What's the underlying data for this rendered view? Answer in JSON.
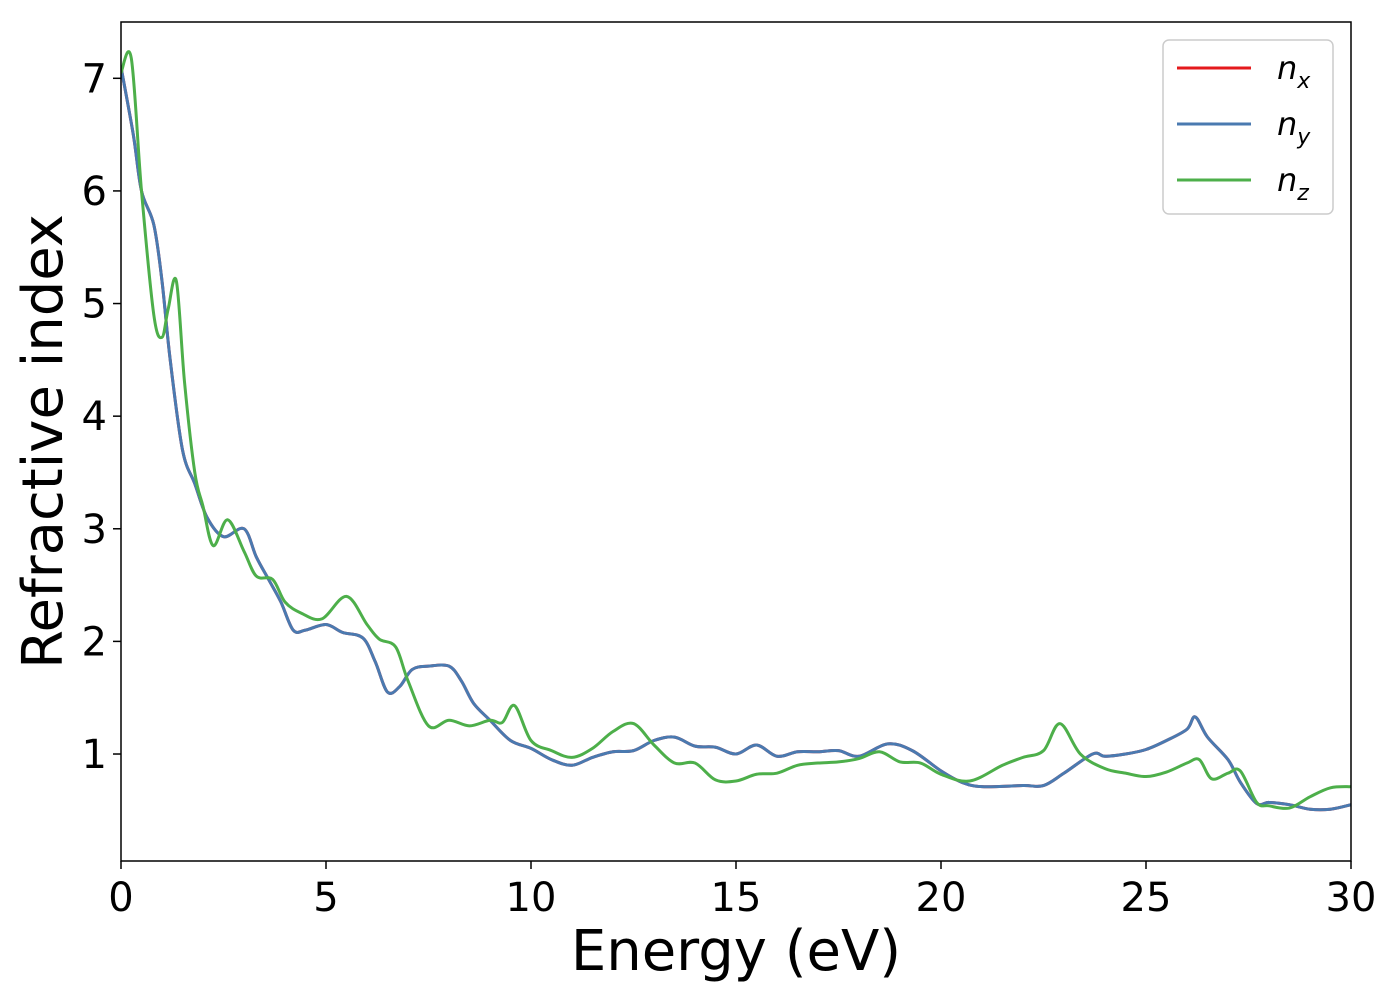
{
  "chart_data": {
    "type": "line",
    "xlabel": "Energy (eV)",
    "ylabel": "Refractive index",
    "xlim": [
      0,
      30
    ],
    "ylim": [
      0.05,
      7.5
    ],
    "xticks": [
      0,
      5,
      10,
      15,
      20,
      25,
      30
    ],
    "xtick_labels": [
      "0",
      "5",
      "10",
      "15",
      "20",
      "25",
      "30"
    ],
    "yticks": [
      1,
      2,
      3,
      4,
      5,
      6,
      7
    ],
    "ytick_labels": [
      "1",
      "2",
      "3",
      "4",
      "5",
      "6",
      "7"
    ],
    "grid": false,
    "legend_position": "top-right",
    "series": [
      {
        "name": "n",
        "subscript": "x",
        "color": "#e41a1c",
        "x": [
          0,
          0.3,
          0.5,
          0.8,
          1.0,
          1.2,
          1.5,
          1.8,
          2.1,
          2.5,
          3.0,
          3.3,
          3.6,
          3.9,
          4.2,
          4.5,
          5.0,
          5.4,
          5.9,
          6.2,
          6.5,
          6.8,
          7.1,
          7.5,
          8.0,
          8.3,
          8.6,
          9.0,
          9.5,
          10.0,
          10.5,
          11.0,
          11.5,
          12.0,
          12.5,
          13.0,
          13.5,
          14.0,
          14.5,
          15.0,
          15.5,
          16.0,
          16.5,
          17.0,
          17.5,
          18.0,
          18.7,
          19.3,
          20.0,
          20.5,
          21.0,
          22.0,
          22.5,
          23.0,
          23.7,
          24.0,
          24.5,
          25.0,
          25.5,
          26.0,
          26.2,
          26.5,
          27.0,
          27.3,
          27.7,
          28.0,
          28.5,
          29.0,
          29.5,
          30.0
        ],
        "y": [
          7.1,
          6.5,
          6.0,
          5.7,
          5.2,
          4.5,
          3.7,
          3.4,
          3.1,
          2.93,
          3.0,
          2.75,
          2.55,
          2.35,
          2.1,
          2.1,
          2.15,
          2.08,
          2.03,
          1.82,
          1.55,
          1.6,
          1.75,
          1.78,
          1.78,
          1.65,
          1.45,
          1.3,
          1.12,
          1.05,
          0.95,
          0.9,
          0.97,
          1.02,
          1.03,
          1.12,
          1.15,
          1.07,
          1.06,
          1.0,
          1.08,
          0.98,
          1.02,
          1.02,
          1.03,
          0.98,
          1.09,
          1.03,
          0.85,
          0.75,
          0.71,
          0.72,
          0.72,
          0.83,
          1.0,
          0.98,
          1.0,
          1.04,
          1.12,
          1.22,
          1.33,
          1.15,
          0.95,
          0.75,
          0.56,
          0.57,
          0.55,
          0.51,
          0.51,
          0.55
        ]
      },
      {
        "name": "n",
        "subscript": "y",
        "color": "#4a7ab0",
        "x": [
          0,
          0.3,
          0.5,
          0.8,
          1.0,
          1.2,
          1.5,
          1.8,
          2.1,
          2.5,
          3.0,
          3.3,
          3.6,
          3.9,
          4.2,
          4.5,
          5.0,
          5.4,
          5.9,
          6.2,
          6.5,
          6.8,
          7.1,
          7.5,
          8.0,
          8.3,
          8.6,
          9.0,
          9.5,
          10.0,
          10.5,
          11.0,
          11.5,
          12.0,
          12.5,
          13.0,
          13.5,
          14.0,
          14.5,
          15.0,
          15.5,
          16.0,
          16.5,
          17.0,
          17.5,
          18.0,
          18.7,
          19.3,
          20.0,
          20.5,
          21.0,
          22.0,
          22.5,
          23.0,
          23.7,
          24.0,
          24.5,
          25.0,
          25.5,
          26.0,
          26.2,
          26.5,
          27.0,
          27.3,
          27.7,
          28.0,
          28.5,
          29.0,
          29.5,
          30.0
        ],
        "y": [
          7.1,
          6.5,
          6.0,
          5.7,
          5.2,
          4.5,
          3.7,
          3.4,
          3.1,
          2.93,
          3.0,
          2.75,
          2.55,
          2.35,
          2.1,
          2.1,
          2.15,
          2.08,
          2.03,
          1.82,
          1.55,
          1.6,
          1.75,
          1.78,
          1.78,
          1.65,
          1.45,
          1.3,
          1.12,
          1.05,
          0.95,
          0.9,
          0.97,
          1.02,
          1.03,
          1.12,
          1.15,
          1.07,
          1.06,
          1.0,
          1.08,
          0.98,
          1.02,
          1.02,
          1.03,
          0.98,
          1.09,
          1.03,
          0.85,
          0.75,
          0.71,
          0.72,
          0.72,
          0.83,
          1.0,
          0.98,
          1.0,
          1.04,
          1.12,
          1.22,
          1.33,
          1.15,
          0.95,
          0.75,
          0.56,
          0.57,
          0.55,
          0.51,
          0.51,
          0.55
        ]
      },
      {
        "name": "n",
        "subscript": "z",
        "color": "#4daf4a",
        "x": [
          0,
          0.25,
          0.5,
          0.8,
          1.0,
          1.15,
          1.35,
          1.55,
          1.8,
          2.0,
          2.25,
          2.6,
          3.0,
          3.3,
          3.7,
          4.0,
          4.4,
          4.9,
          5.5,
          6.0,
          6.3,
          6.7,
          7.0,
          7.5,
          8.0,
          8.5,
          9.0,
          9.3,
          9.6,
          10.0,
          10.5,
          11.0,
          11.5,
          12.0,
          12.5,
          13.0,
          13.5,
          14.0,
          14.5,
          15.0,
          15.5,
          16.0,
          16.5,
          17.0,
          17.5,
          18.0,
          18.5,
          19.0,
          19.5,
          20.0,
          20.7,
          21.5,
          22.0,
          22.5,
          22.9,
          23.4,
          24.0,
          24.5,
          25.0,
          25.5,
          26.0,
          26.3,
          26.6,
          27.0,
          27.3,
          27.7,
          28.0,
          28.5,
          29.0,
          29.5,
          30.0
        ],
        "y": [
          7.05,
          7.18,
          6.0,
          4.9,
          4.7,
          4.95,
          5.2,
          4.3,
          3.5,
          3.2,
          2.85,
          3.08,
          2.8,
          2.58,
          2.55,
          2.35,
          2.25,
          2.2,
          2.4,
          2.15,
          2.02,
          1.95,
          1.65,
          1.25,
          1.3,
          1.25,
          1.3,
          1.28,
          1.43,
          1.12,
          1.03,
          0.97,
          1.05,
          1.2,
          1.27,
          1.08,
          0.92,
          0.92,
          0.77,
          0.76,
          0.82,
          0.83,
          0.9,
          0.92,
          0.93,
          0.96,
          1.02,
          0.93,
          0.92,
          0.82,
          0.76,
          0.9,
          0.97,
          1.03,
          1.27,
          1.0,
          0.87,
          0.83,
          0.8,
          0.84,
          0.92,
          0.95,
          0.78,
          0.83,
          0.85,
          0.57,
          0.54,
          0.52,
          0.62,
          0.7,
          0.71
        ]
      }
    ]
  }
}
